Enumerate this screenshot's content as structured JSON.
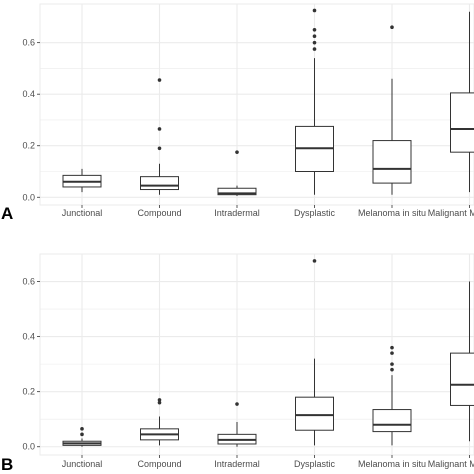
{
  "figure": {
    "background": "#ffffff",
    "panel_background": "#ffffff",
    "grid_color": "#ebebeb",
    "box_color": "#333333"
  },
  "chart_data": [
    {
      "type": "boxplot",
      "panel_label": "A",
      "title": "",
      "xlabel": "",
      "ylabel": "",
      "ylim": [
        -0.03,
        0.75
      ],
      "yticks": [
        0.0,
        0.2,
        0.4,
        0.6
      ],
      "ytick_labels": [
        "0.0",
        "0.2",
        "0.4",
        "0.6"
      ],
      "grid": true,
      "categories": [
        "Junctional",
        "Compound",
        "Intradermal",
        "Dysplastic",
        "Melanoma in situ",
        "Malignant Melanoma"
      ],
      "boxes": [
        {
          "category": "Junctional",
          "whisker_low": 0.02,
          "q1": 0.04,
          "median": 0.06,
          "q3": 0.085,
          "whisker_high": 0.11,
          "outliers": []
        },
        {
          "category": "Compound",
          "whisker_low": 0.01,
          "q1": 0.03,
          "median": 0.045,
          "q3": 0.08,
          "whisker_high": 0.13,
          "outliers": [
            0.19,
            0.265,
            0.455
          ]
        },
        {
          "category": "Intradermal",
          "whisker_low": 0.005,
          "q1": 0.01,
          "median": 0.015,
          "q3": 0.035,
          "whisker_high": 0.045,
          "outliers": [
            0.175
          ]
        },
        {
          "category": "Dysplastic",
          "whisker_low": 0.01,
          "q1": 0.1,
          "median": 0.19,
          "q3": 0.275,
          "whisker_high": 0.54,
          "outliers": [
            0.575,
            0.6,
            0.625,
            0.65,
            0.725
          ]
        },
        {
          "category": "Melanoma in situ",
          "whisker_low": 0.01,
          "q1": 0.055,
          "median": 0.11,
          "q3": 0.22,
          "whisker_high": 0.46,
          "outliers": [
            0.66
          ]
        },
        {
          "category": "Malignant Melanoma",
          "whisker_low": 0.02,
          "q1": 0.175,
          "median": 0.265,
          "q3": 0.405,
          "whisker_high": 0.72,
          "outliers": []
        }
      ]
    },
    {
      "type": "boxplot",
      "panel_label": "B",
      "title": "",
      "xlabel": "",
      "ylabel": "",
      "ylim": [
        -0.03,
        0.7
      ],
      "yticks": [
        0.0,
        0.2,
        0.4,
        0.6
      ],
      "ytick_labels": [
        "0.0",
        "0.2",
        "0.4",
        "0.6"
      ],
      "grid": true,
      "categories": [
        "Junctional",
        "Compound",
        "Intradermal",
        "Dysplastic",
        "Melanoma in situ",
        "Malignant Melanoma"
      ],
      "boxes": [
        {
          "category": "Junctional",
          "whisker_low": 0.0,
          "q1": 0.005,
          "median": 0.012,
          "q3": 0.02,
          "whisker_high": 0.03,
          "outliers": [
            0.045,
            0.065
          ]
        },
        {
          "category": "Compound",
          "whisker_low": 0.005,
          "q1": 0.025,
          "median": 0.045,
          "q3": 0.065,
          "whisker_high": 0.11,
          "outliers": [
            0.16,
            0.17
          ]
        },
        {
          "category": "Intradermal",
          "whisker_low": 0.0,
          "q1": 0.01,
          "median": 0.025,
          "q3": 0.045,
          "whisker_high": 0.09,
          "outliers": [
            0.155
          ]
        },
        {
          "category": "Dysplastic",
          "whisker_low": 0.005,
          "q1": 0.06,
          "median": 0.115,
          "q3": 0.18,
          "whisker_high": 0.32,
          "outliers": [
            0.675
          ]
        },
        {
          "category": "Melanoma in situ",
          "whisker_low": 0.005,
          "q1": 0.055,
          "median": 0.08,
          "q3": 0.135,
          "whisker_high": 0.26,
          "outliers": [
            0.28,
            0.3,
            0.34,
            0.36
          ]
        },
        {
          "category": "Malignant Melanoma",
          "whisker_low": 0.02,
          "q1": 0.15,
          "median": 0.225,
          "q3": 0.34,
          "whisker_high": 0.6,
          "outliers": []
        }
      ]
    }
  ]
}
